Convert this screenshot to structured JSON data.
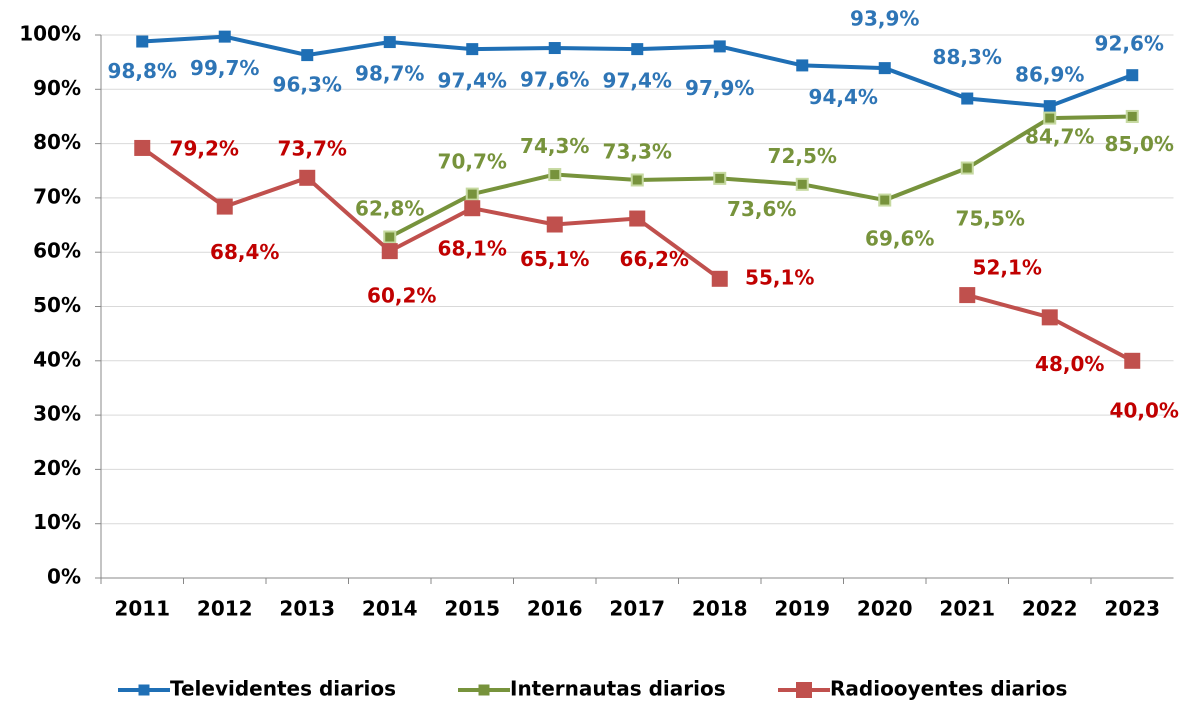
{
  "chart_data": {
    "type": "line",
    "categories": [
      "2011",
      "2012",
      "2013",
      "2014",
      "2015",
      "2016",
      "2017",
      "2018",
      "2019",
      "2020",
      "2021",
      "2022",
      "2023"
    ],
    "ylim": [
      0,
      100
    ],
    "yticks": [
      {
        "value": 0,
        "label": "0%"
      },
      {
        "value": 10,
        "label": "10%"
      },
      {
        "value": 20,
        "label": "20%"
      },
      {
        "value": 30,
        "label": "30%"
      },
      {
        "value": 40,
        "label": "40%"
      },
      {
        "value": 50,
        "label": "50%"
      },
      {
        "value": 60,
        "label": "60%"
      },
      {
        "value": 70,
        "label": "70%"
      },
      {
        "value": 80,
        "label": "80%"
      },
      {
        "value": 90,
        "label": "90%"
      },
      {
        "value": 100,
        "label": "100%"
      }
    ],
    "grid": true,
    "legend": "bottom",
    "series": [
      {
        "name": "Televidentes diarios",
        "color": "#1f6fb5",
        "label_color": "#2e75b6",
        "values": [
          98.8,
          99.7,
          96.3,
          98.7,
          97.4,
          97.6,
          97.4,
          97.9,
          94.4,
          93.9,
          88.3,
          86.9,
          92.6
        ],
        "value_labels": [
          "98,8%",
          "99,7%",
          "96,3%",
          "98,7%",
          "97,4%",
          "97,6%",
          "97,4%",
          "97,9%",
          "94,4%",
          "93,9%",
          "88,3%",
          "86,9%",
          "92,6%"
        ]
      },
      {
        "name": "Internautas diarios",
        "color": "#77933c",
        "label_color": "#77933c",
        "values": [
          null,
          null,
          null,
          62.8,
          70.7,
          74.3,
          73.3,
          73.6,
          72.5,
          69.6,
          75.5,
          84.7,
          85.0
        ],
        "value_labels": [
          null,
          null,
          null,
          "62,8%",
          "70,7%",
          "74,3%",
          "73,3%",
          "73,6%",
          "72,5%",
          "69,6%",
          "75,5%",
          "84,7%",
          "85,0%"
        ]
      },
      {
        "name": "Radiooyentes diarios",
        "color": "#c0504d",
        "label_color": "#c00000",
        "values": [
          79.2,
          68.4,
          73.7,
          60.2,
          68.1,
          65.1,
          66.2,
          55.1,
          null,
          null,
          52.1,
          48.0,
          40.0
        ],
        "value_labels": [
          "79,2%",
          "68,4%",
          "73,7%",
          "60,2%",
          "68,1%",
          "65,1%",
          "66,2%",
          "55,1%",
          null,
          null,
          "52,1%",
          "48,0%",
          "40,0%"
        ]
      }
    ]
  }
}
